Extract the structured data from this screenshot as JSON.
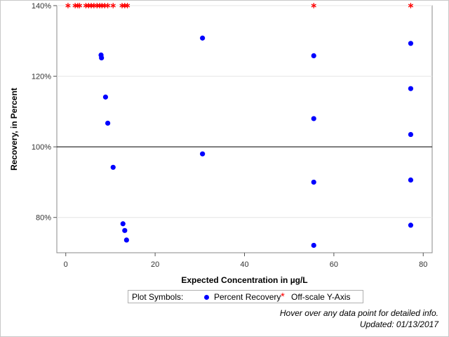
{
  "chart_data": {
    "type": "scatter",
    "xlabel": "Expected Concentration in µg/L",
    "ylabel": "Recovery, in Percent",
    "xlim": [
      -2,
      82
    ],
    "ylim": [
      70,
      140
    ],
    "x_ticks": [
      0,
      20,
      40,
      60,
      80
    ],
    "y_ticks": [
      80,
      100,
      120,
      140
    ],
    "y_tick_labels": [
      "80%",
      "100%",
      "120%",
      "140%"
    ],
    "reference_line_y": 100,
    "grid": "horizontal",
    "series": [
      {
        "name": "Percent Recovery",
        "marker": "circle",
        "color": "#0000ff",
        "points": [
          [
            7.9,
            126.0
          ],
          [
            8.0,
            125.2
          ],
          [
            8.9,
            114.1
          ],
          [
            9.4,
            106.7
          ],
          [
            10.6,
            94.2
          ],
          [
            12.8,
            78.2
          ],
          [
            13.2,
            76.3
          ],
          [
            13.6,
            73.6
          ],
          [
            30.6,
            130.8
          ],
          [
            30.6,
            98.0
          ],
          [
            55.5,
            125.8
          ],
          [
            55.5,
            108.0
          ],
          [
            55.5,
            90.0
          ],
          [
            55.5,
            72.1
          ],
          [
            77.2,
            129.3
          ],
          [
            77.2,
            116.5
          ],
          [
            77.2,
            103.5
          ],
          [
            77.2,
            90.6
          ],
          [
            77.2,
            77.8
          ]
        ]
      },
      {
        "name": "Off-scale Y-Axis",
        "marker": "star",
        "color": "#ff0000",
        "points": [
          [
            0.5,
            140
          ],
          [
            2.1,
            140
          ],
          [
            2.7,
            140
          ],
          [
            3.1,
            140
          ],
          [
            4.5,
            140
          ],
          [
            5.1,
            140
          ],
          [
            5.7,
            140
          ],
          [
            6.3,
            140
          ],
          [
            7.0,
            140
          ],
          [
            7.6,
            140
          ],
          [
            8.1,
            140
          ],
          [
            8.7,
            140
          ],
          [
            9.4,
            140
          ],
          [
            10.6,
            140
          ],
          [
            12.6,
            140
          ],
          [
            13.2,
            140
          ],
          [
            13.8,
            140
          ],
          [
            55.5,
            140
          ],
          [
            77.2,
            140
          ]
        ]
      }
    ]
  },
  "legend": {
    "title": "Plot Symbols:",
    "items": [
      {
        "label": "Percent Recovery",
        "color": "#0000ff"
      },
      {
        "label": "Off-scale Y-Axis",
        "color": "#ff0000",
        "glyph": "*"
      }
    ]
  },
  "footnote": {
    "line1": "Hover over any data point for detailed info.",
    "line2": "Updated: 01/13/2017"
  }
}
